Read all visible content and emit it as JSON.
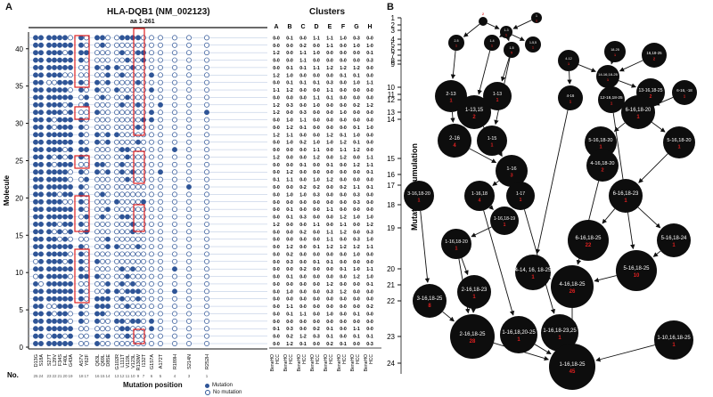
{
  "panel_a": {
    "letter": "A",
    "title": "HLA-DQB1 (NM_002123)",
    "subtitle": "aa 1-261",
    "clusters_title": "Clusters",
    "y_label": "Molecule",
    "y_ticks": [
      "0",
      "5",
      "10",
      "15",
      "20",
      "25",
      "30",
      "35",
      "40"
    ],
    "x_label": "Mutation position",
    "no_label": "No.",
    "positions": [
      "D13G",
      "S18A",
      "S27T",
      "L29V",
      "F34S",
      "F40L",
      "G43A",
      "A57V",
      "Y62F",
      "Q63L",
      "Q69L",
      "D85E",
      "G102R",
      "L111T",
      "V119L",
      "V123L",
      "R130W",
      "I132T",
      "G157A",
      "A172T",
      "R189H",
      "S214N",
      "R252H"
    ],
    "counts": [
      "25",
      "24",
      "23",
      "22",
      "21",
      "20",
      "19",
      "18",
      "17",
      "16",
      "15",
      "14",
      "13",
      "12",
      "11",
      "10",
      "9",
      "7",
      "6",
      "5",
      "4",
      "3",
      "1"
    ],
    "cluster_headers": [
      "A",
      "B",
      "C",
      "D",
      "E",
      "F",
      "G",
      "H"
    ],
    "col_labels": [
      "BeneHO",
      "HCC"
    ],
    "legend_mut": "Mutation",
    "legend_nomut": "No mutation",
    "colors": {
      "mutation": "#2f5597",
      "no_mutation": "#ffffff",
      "highlight": "#e02020"
    }
  },
  "panel_b": {
    "letter": "B",
    "y_label": "Mutation accumulation",
    "levels": [
      "1",
      "2",
      "3",
      "4",
      "5",
      "6",
      "7",
      "8",
      "9",
      "10",
      "11",
      "12",
      "13",
      "14",
      "15",
      "16",
      "17",
      "18",
      "19",
      "20",
      "21",
      "22",
      "23",
      "24"
    ],
    "nodes": [
      {
        "id": "n1",
        "label": "1",
        "count": "1"
      },
      {
        "id": "n2",
        "label": "",
        "count": "2"
      },
      {
        "id": "n13",
        "label": "1-3",
        "count": "1"
      },
      {
        "id": "n25",
        "label": "2-5",
        "count": "1"
      },
      {
        "id": "n14",
        "label": "1-4",
        "count": "1"
      },
      {
        "id": "n15",
        "label": "1-5",
        "count": "5"
      },
      {
        "id": "n155",
        "label": "1-5,5",
        "count": "1"
      },
      {
        "id": "n412",
        "label": "4-12",
        "count": "1"
      },
      {
        "id": "n1825",
        "label": "18-25",
        "count": "1"
      },
      {
        "id": "n161825a",
        "label": "16,18-25",
        "count": "2"
      },
      {
        "id": "n14161825",
        "label": "14-16,18-25",
        "count": "1"
      },
      {
        "id": "n213",
        "label": "2-13",
        "count": "1"
      },
      {
        "id": "n113",
        "label": "1-13",
        "count": "1"
      },
      {
        "id": "n416",
        "label": "4-16",
        "count": "1"
      },
      {
        "id": "n12161825",
        "label": "12-16,18-25",
        "count": "1"
      },
      {
        "id": "n13161825",
        "label": "13-16,18-25",
        "count": "2"
      },
      {
        "id": "n616b",
        "label": "6-16, -18",
        "count": "1"
      },
      {
        "id": "n11315",
        "label": "1-13,15",
        "count": "2"
      },
      {
        "id": "n6161820",
        "label": "6-16,18-20",
        "count": "1"
      },
      {
        "id": "n216",
        "label": "2-16",
        "count": "4"
      },
      {
        "id": "n115",
        "label": "1-15",
        "count": "1"
      },
      {
        "id": "n5161820a",
        "label": "5-16,18-20",
        "count": "1"
      },
      {
        "id": "n5161820b",
        "label": "5-16,18-20",
        "count": "1"
      },
      {
        "id": "n116",
        "label": "1-16",
        "count": "3"
      },
      {
        "id": "n4161820",
        "label": "4-16,18-20",
        "count": "2"
      },
      {
        "id": "n11618",
        "label": "1-16,18",
        "count": "4"
      },
      {
        "id": "n117",
        "label": "1-17",
        "count": "1"
      },
      {
        "id": "n3161820a",
        "label": "3-16,18-20",
        "count": "1"
      },
      {
        "id": "n6161823",
        "label": "6-16,18-23",
        "count": "1"
      },
      {
        "id": "n1161819",
        "label": "1-16,18-19",
        "count": "1"
      },
      {
        "id": "n1161820",
        "label": "1-16,18-20",
        "count": "1"
      },
      {
        "id": "n6161825",
        "label": "6-16,18-25",
        "count": "22"
      },
      {
        "id": "n51624",
        "label": "5-16,18-24",
        "count": "1"
      },
      {
        "id": "n5161825",
        "label": "5-16,18-25",
        "count": "10"
      },
      {
        "id": "n414",
        "label": "4-14, 16, 18-25",
        "count": "1"
      },
      {
        "id": "n4161825",
        "label": "4-16,18-25",
        "count": "26"
      },
      {
        "id": "n2161823",
        "label": "2-16,18-23",
        "count": "1"
      },
      {
        "id": "n3161825",
        "label": "3-16,18-25",
        "count": "8"
      },
      {
        "id": "n2161825",
        "label": "2-16,18-25",
        "count": "28"
      },
      {
        "id": "n116182025",
        "label": "1-16,18,20-25",
        "count": "1"
      },
      {
        "id": "n116182325",
        "label": "1-16,18-23,25",
        "count": "1"
      },
      {
        "id": "n1101625",
        "label": "1-10,16,18-25",
        "count": "1"
      },
      {
        "id": "n1161825",
        "label": "1-16,18-25",
        "count": "45"
      }
    ],
    "colors": {
      "node": "#0d0d0d",
      "label": "#ffffff",
      "count": "#e02020",
      "edge": "#111111"
    }
  }
}
